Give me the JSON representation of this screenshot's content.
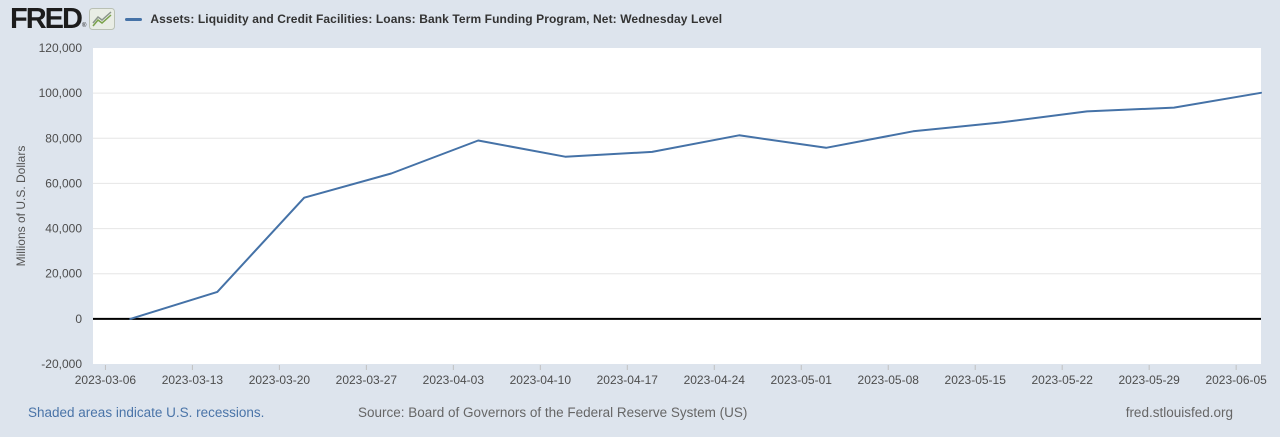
{
  "header": {
    "logo_text": "FRED",
    "reg_mark": "®",
    "legend_label": "Assets: Liquidity and Credit Facilities: Loans: Bank Term Funding Program, Net: Wednesday Level"
  },
  "y_axis": {
    "title": "Millions of U.S. Dollars"
  },
  "footer": {
    "left_link": "Shaded areas indicate U.S. recessions.",
    "source": "Source: Board of Governors of the Federal Reserve System (US)",
    "site": "fred.stlouisfed.org"
  },
  "colors": {
    "page_bg": "#dde4ed",
    "plot_bg": "#ffffff",
    "series_line": "#4572a7",
    "grid_line": "#e6e6e6",
    "zero_line": "#000000",
    "tick_line": "#c0c0c0",
    "axis_text": "#4d4d4d",
    "header_text": "#333333",
    "footer_link": "#4a74a8",
    "footer_text": "#666666"
  },
  "chart_data": {
    "type": "line",
    "title": "Assets: Liquidity and Credit Facilities: Loans: Bank Term Funding Program, Net: Wednesday Level",
    "xlabel": "",
    "ylabel": "Millions of U.S. Dollars",
    "grid": true,
    "legend_position": "header-top-left",
    "x_range": [
      "2023-03-05",
      "2023-06-07"
    ],
    "y_range": [
      -20000,
      120000
    ],
    "x_ticks": [
      "2023-03-06",
      "2023-03-13",
      "2023-03-20",
      "2023-03-27",
      "2023-04-03",
      "2023-04-10",
      "2023-04-17",
      "2023-04-24",
      "2023-05-01",
      "2023-05-08",
      "2023-05-15",
      "2023-05-22",
      "2023-05-29",
      "2023-06-05"
    ],
    "y_ticks": [
      -20000,
      0,
      20000,
      40000,
      60000,
      80000,
      100000,
      120000
    ],
    "series": [
      {
        "name": "Assets: Liquidity and Credit Facilities: Loans: Bank Term Funding Program, Net: Wednesday Level",
        "color": "#4572a7",
        "points": [
          [
            "2023-03-08",
            0
          ],
          [
            "2023-03-15",
            11943
          ],
          [
            "2023-03-22",
            53669
          ],
          [
            "2023-03-29",
            64403
          ],
          [
            "2023-04-05",
            79021
          ],
          [
            "2023-04-12",
            71837
          ],
          [
            "2023-04-19",
            73982
          ],
          [
            "2023-04-26",
            81327
          ],
          [
            "2023-05-03",
            75778
          ],
          [
            "2023-05-10",
            83101
          ],
          [
            "2023-05-17",
            87006
          ],
          [
            "2023-05-24",
            91907
          ],
          [
            "2023-05-31",
            93615
          ],
          [
            "2023-06-07",
            100161
          ]
        ]
      }
    ]
  }
}
